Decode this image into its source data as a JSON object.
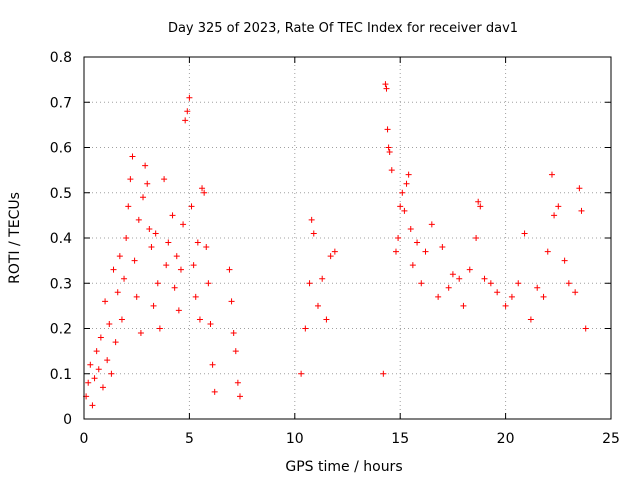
{
  "chart_data": {
    "type": "scatter",
    "title": "Day 325 of 2023, Rate Of TEC Index for receiver dav1",
    "xlabel": "GPS time / hours",
    "ylabel": "ROTI / TECUs",
    "xlim": [
      0,
      25
    ],
    "ylim": [
      0,
      0.8
    ],
    "xticks": [
      "0",
      "5",
      "10",
      "15",
      "20",
      "25"
    ],
    "yticks": [
      "0",
      "0.1",
      "0.2",
      "0.3",
      "0.4",
      "0.5",
      "0.6",
      "0.7",
      "0.8"
    ],
    "grid": true,
    "marker": "+",
    "marker_color": "#ff0000",
    "series": [
      {
        "points": [
          [
            0.1,
            0.05
          ],
          [
            0.2,
            0.08
          ],
          [
            0.3,
            0.12
          ],
          [
            0.4,
            0.03
          ],
          [
            0.5,
            0.09
          ],
          [
            0.6,
            0.15
          ],
          [
            0.7,
            0.11
          ],
          [
            0.8,
            0.18
          ],
          [
            0.9,
            0.07
          ],
          [
            1.0,
            0.26
          ],
          [
            1.1,
            0.13
          ],
          [
            1.2,
            0.21
          ],
          [
            1.3,
            0.1
          ],
          [
            1.4,
            0.33
          ],
          [
            1.5,
            0.17
          ],
          [
            1.6,
            0.28
          ],
          [
            1.7,
            0.36
          ],
          [
            1.8,
            0.22
          ],
          [
            1.9,
            0.31
          ],
          [
            2.0,
            0.4
          ],
          [
            2.1,
            0.47
          ],
          [
            2.2,
            0.53
          ],
          [
            2.3,
            0.58
          ],
          [
            2.4,
            0.35
          ],
          [
            2.5,
            0.27
          ],
          [
            2.6,
            0.44
          ],
          [
            2.7,
            0.19
          ],
          [
            2.8,
            0.49
          ],
          [
            2.9,
            0.56
          ],
          [
            3.0,
            0.52
          ],
          [
            3.1,
            0.42
          ],
          [
            3.2,
            0.38
          ],
          [
            3.3,
            0.25
          ],
          [
            3.4,
            0.41
          ],
          [
            3.5,
            0.3
          ],
          [
            3.6,
            0.2
          ],
          [
            3.8,
            0.53
          ],
          [
            3.9,
            0.34
          ],
          [
            4.0,
            0.39
          ],
          [
            4.2,
            0.45
          ],
          [
            4.3,
            0.29
          ],
          [
            4.4,
            0.36
          ],
          [
            4.5,
            0.24
          ],
          [
            4.6,
            0.33
          ],
          [
            4.7,
            0.43
          ],
          [
            4.8,
            0.66
          ],
          [
            4.9,
            0.68
          ],
          [
            5.0,
            0.71
          ],
          [
            5.1,
            0.47
          ],
          [
            5.2,
            0.34
          ],
          [
            5.3,
            0.27
          ],
          [
            5.4,
            0.39
          ],
          [
            5.5,
            0.22
          ],
          [
            5.6,
            0.51
          ],
          [
            5.7,
            0.5
          ],
          [
            5.8,
            0.38
          ],
          [
            5.9,
            0.3
          ],
          [
            6.0,
            0.21
          ],
          [
            6.1,
            0.12
          ],
          [
            6.2,
            0.06
          ],
          [
            6.9,
            0.33
          ],
          [
            7.0,
            0.26
          ],
          [
            7.1,
            0.19
          ],
          [
            7.2,
            0.15
          ],
          [
            7.3,
            0.08
          ],
          [
            7.4,
            0.05
          ],
          [
            10.3,
            0.1
          ],
          [
            10.5,
            0.2
          ],
          [
            10.7,
            0.3
          ],
          [
            10.8,
            0.44
          ],
          [
            10.9,
            0.41
          ],
          [
            11.1,
            0.25
          ],
          [
            11.3,
            0.31
          ],
          [
            11.5,
            0.22
          ],
          [
            11.7,
            0.36
          ],
          [
            11.9,
            0.37
          ],
          [
            14.2,
            0.1
          ],
          [
            14.3,
            0.74
          ],
          [
            14.35,
            0.73
          ],
          [
            14.4,
            0.64
          ],
          [
            14.45,
            0.6
          ],
          [
            14.5,
            0.59
          ],
          [
            14.6,
            0.55
          ],
          [
            14.8,
            0.37
          ],
          [
            14.9,
            0.4
          ],
          [
            15.0,
            0.47
          ],
          [
            15.1,
            0.5
          ],
          [
            15.2,
            0.46
          ],
          [
            15.3,
            0.52
          ],
          [
            15.4,
            0.54
          ],
          [
            15.5,
            0.42
          ],
          [
            15.6,
            0.34
          ],
          [
            15.8,
            0.39
          ],
          [
            16.0,
            0.3
          ],
          [
            16.2,
            0.37
          ],
          [
            16.5,
            0.43
          ],
          [
            16.8,
            0.27
          ],
          [
            17.0,
            0.38
          ],
          [
            17.3,
            0.29
          ],
          [
            17.5,
            0.32
          ],
          [
            17.8,
            0.31
          ],
          [
            18.0,
            0.25
          ],
          [
            18.3,
            0.33
          ],
          [
            18.6,
            0.4
          ],
          [
            18.7,
            0.48
          ],
          [
            18.8,
            0.47
          ],
          [
            19.0,
            0.31
          ],
          [
            19.3,
            0.3
          ],
          [
            19.6,
            0.28
          ],
          [
            20.0,
            0.25
          ],
          [
            20.3,
            0.27
          ],
          [
            20.6,
            0.3
          ],
          [
            20.9,
            0.41
          ],
          [
            21.2,
            0.22
          ],
          [
            21.5,
            0.29
          ],
          [
            21.8,
            0.27
          ],
          [
            22.0,
            0.37
          ],
          [
            22.2,
            0.54
          ],
          [
            22.3,
            0.45
          ],
          [
            22.5,
            0.47
          ],
          [
            22.8,
            0.35
          ],
          [
            23.0,
            0.3
          ],
          [
            23.3,
            0.28
          ],
          [
            23.5,
            0.51
          ],
          [
            23.6,
            0.46
          ],
          [
            23.8,
            0.2
          ]
        ]
      }
    ]
  }
}
